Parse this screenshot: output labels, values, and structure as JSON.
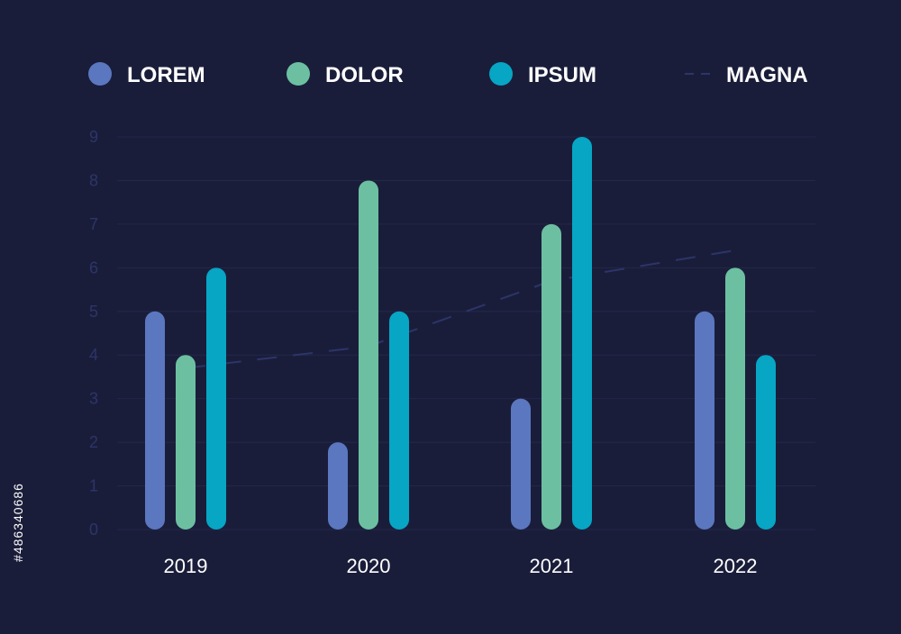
{
  "chart_data": {
    "type": "bar",
    "categories": [
      "2019",
      "2020",
      "2021",
      "2022"
    ],
    "series": [
      {
        "name": "LOREM",
        "values": [
          5,
          2,
          3,
          5
        ]
      },
      {
        "name": "DOLOR",
        "values": [
          4,
          8,
          7,
          6
        ]
      },
      {
        "name": "IPSUM",
        "values": [
          6,
          5,
          9,
          4
        ]
      }
    ],
    "line_series": {
      "name": "MAGNA",
      "values": [
        3.7,
        4.2,
        5.7,
        6.4
      ],
      "style": "dashed"
    },
    "y_ticks": [
      "0",
      "1",
      "2",
      "3",
      "4",
      "5",
      "6",
      "7",
      "8",
      "9"
    ],
    "ylim": [
      0,
      9
    ],
    "grid": true,
    "legend_position": "top",
    "title": "",
    "xlabel": "",
    "ylabel": ""
  },
  "colors": {
    "background": "#1a1d3a",
    "grid": "#232849",
    "tick": "#2c3568",
    "series": [
      "#5b77c0",
      "#6cc0a1",
      "#06a6c4"
    ],
    "line": "#2c3568"
  },
  "watermark_id": "#486340686"
}
